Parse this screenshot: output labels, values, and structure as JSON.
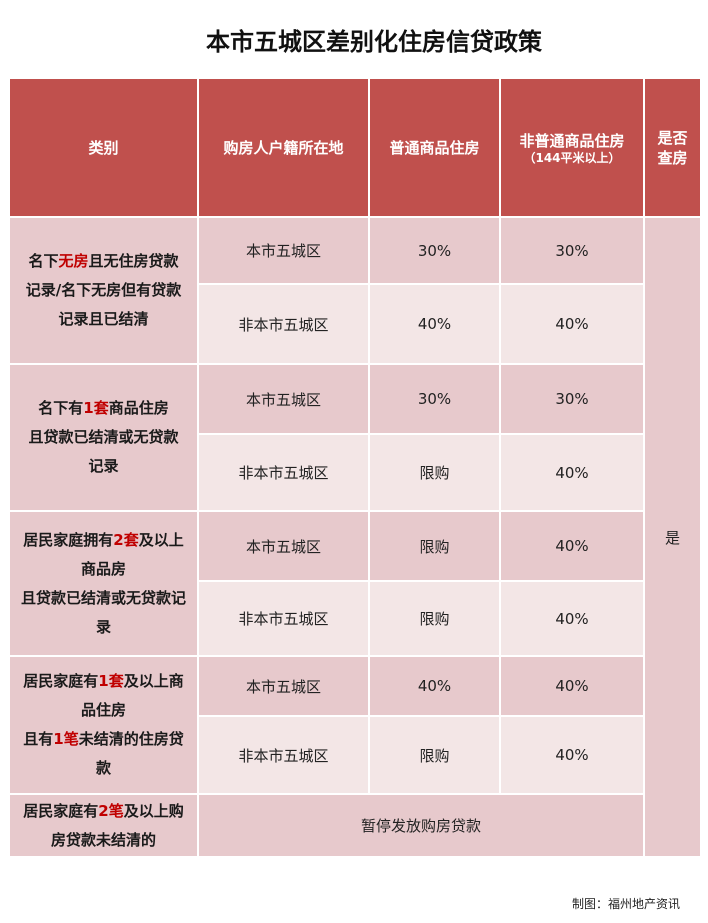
{
  "title": "本市五城区差别化住房信贷政策",
  "colors": {
    "header": "#c0504d",
    "row_dark": "#e7c9cc",
    "row_light": "#f3e6e6",
    "highlight": "#c00000"
  },
  "headers": {
    "category": "类别",
    "residence": "购房人户籍所在地",
    "ordinary": "普通商品住房",
    "non_ordinary": "非普通商品住房",
    "non_ordinary_note": "（144平米以上）",
    "check": "是否查房"
  },
  "check_value": "是",
  "groups": [
    {
      "category_lines": [
        [
          [
            "名下",
            ""
          ],
          [
            "无房",
            "red"
          ],
          [
            "且无住房贷款",
            ""
          ]
        ],
        [
          [
            "记录/名下无房但有贷款",
            ""
          ]
        ],
        [
          [
            "记录且已结清",
            ""
          ]
        ]
      ],
      "rows": [
        {
          "residence": "本市五城区",
          "ordinary": "30%",
          "non_ordinary": "30%"
        },
        {
          "residence": "非本市五城区",
          "ordinary": "40%",
          "non_ordinary": "40%"
        }
      ]
    },
    {
      "category_lines": [
        [
          [
            "名下有",
            ""
          ],
          [
            "1套",
            "red"
          ],
          [
            "商品住房",
            ""
          ]
        ],
        [
          [
            "且贷款已结清或无贷款",
            ""
          ]
        ],
        [
          [
            "记录",
            ""
          ]
        ]
      ],
      "rows": [
        {
          "residence": "本市五城区",
          "ordinary": "30%",
          "non_ordinary": "30%"
        },
        {
          "residence": "非本市五城区",
          "ordinary": "限购",
          "non_ordinary": "40%"
        }
      ]
    },
    {
      "category_lines": [
        [
          [
            "居民家庭拥有",
            ""
          ],
          [
            "2套",
            "red"
          ],
          [
            "及以上",
            ""
          ]
        ],
        [
          [
            "商品房",
            ""
          ]
        ],
        [
          [
            "且贷款已结清或无贷款记",
            ""
          ]
        ],
        [
          [
            "录",
            ""
          ]
        ]
      ],
      "rows": [
        {
          "residence": "本市五城区",
          "ordinary": "限购",
          "non_ordinary": "40%"
        },
        {
          "residence": "非本市五城区",
          "ordinary": "限购",
          "non_ordinary": "40%"
        }
      ]
    },
    {
      "category_lines": [
        [
          [
            "居民家庭有",
            ""
          ],
          [
            "1套",
            "red"
          ],
          [
            "及以上商",
            ""
          ]
        ],
        [
          [
            "品住房",
            ""
          ]
        ],
        [
          [
            "且有",
            ""
          ],
          [
            "1笔",
            "red"
          ],
          [
            "未结清的住房贷",
            ""
          ]
        ],
        [
          [
            "款",
            ""
          ]
        ]
      ],
      "rows": [
        {
          "residence": "本市五城区",
          "ordinary": "40%",
          "non_ordinary": "40%"
        },
        {
          "residence": "非本市五城区",
          "ordinary": "限购",
          "non_ordinary": "40%"
        }
      ]
    }
  ],
  "last_group": {
    "category_lines": [
      [
        [
          "居民家庭有",
          ""
        ],
        [
          "2笔",
          "red"
        ],
        [
          "及以上购",
          ""
        ]
      ],
      [
        [
          "房贷款未结清的",
          ""
        ]
      ]
    ],
    "note": "暂停发放购房贷款"
  },
  "footer": "制图：福州地产资讯"
}
